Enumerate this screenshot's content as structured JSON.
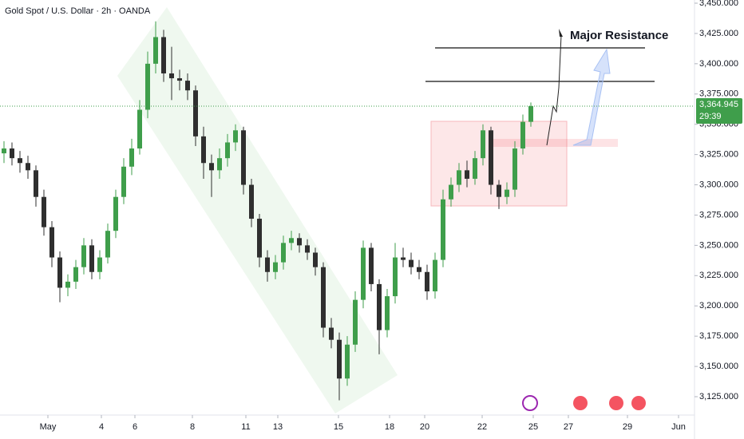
{
  "chart_data": {
    "type": "candlestick",
    "title": "Gold Spot / U.S. Dollar · 2h · OANDA",
    "annotation": "Major Resistance",
    "up_color": "#3f9e4b",
    "down_color": "#2f2f2f",
    "xlim": [
      -0.5,
      86.5
    ],
    "ylim": [
      3125,
      3450
    ],
    "xticks": [
      {
        "value": 5.5,
        "label": "May"
      },
      {
        "value": 12.2,
        "label": "4"
      },
      {
        "value": 16.4,
        "label": "6"
      },
      {
        "value": 23.6,
        "label": "8"
      },
      {
        "value": 30.3,
        "label": "11"
      },
      {
        "value": 34.3,
        "label": "13"
      },
      {
        "value": 41.9,
        "label": "15"
      },
      {
        "value": 48.3,
        "label": "18"
      },
      {
        "value": 52.7,
        "label": "20"
      },
      {
        "value": 59.9,
        "label": "22"
      },
      {
        "value": 66.3,
        "label": "25"
      },
      {
        "value": 70.7,
        "label": "27"
      },
      {
        "value": 78.1,
        "label": "29"
      },
      {
        "value": 84.5,
        "label": "Jun"
      }
    ],
    "yticks": [
      {
        "value": 3125,
        "label": "3,125.000"
      },
      {
        "value": 3150,
        "label": "3,150.000"
      },
      {
        "value": 3175,
        "label": "3,175.000"
      },
      {
        "value": 3200,
        "label": "3,200.000"
      },
      {
        "value": 3225,
        "label": "3,225.000"
      },
      {
        "value": 3250,
        "label": "3,250.000"
      },
      {
        "value": 3275,
        "label": "3,275.000"
      },
      {
        "value": 3300,
        "label": "3,300.000"
      },
      {
        "value": 3325,
        "label": "3,325.000"
      },
      {
        "value": 3350,
        "label": "3,350.000"
      },
      {
        "value": 3375,
        "label": "3,375.000"
      },
      {
        "value": 3400,
        "label": "3,400.000"
      },
      {
        "value": 3425,
        "label": "3,425.000"
      },
      {
        "value": 3450,
        "label": "3,450.000"
      }
    ],
    "last_price": {
      "value": 3364.945,
      "label": "3,364.945"
    },
    "countdown": "29:39",
    "x": [
      0,
      1,
      2,
      3,
      4,
      5,
      6,
      7,
      8,
      9,
      10,
      11,
      12,
      13,
      14,
      15,
      16,
      17,
      18,
      19,
      20,
      21,
      22,
      23,
      24,
      25,
      26,
      27,
      28,
      29,
      30,
      31,
      32,
      33,
      34,
      35,
      36,
      37,
      38,
      39,
      40,
      41,
      42,
      43,
      44,
      45,
      46,
      47,
      48,
      49,
      50,
      51,
      52,
      53,
      54,
      55,
      56,
      57,
      58,
      59,
      60,
      61,
      62,
      63,
      64,
      65,
      66
    ],
    "open": [
      3326,
      3330,
      3322,
      3318,
      3312,
      3290,
      3265,
      3240,
      3215,
      3220,
      3232,
      3250,
      3228,
      3240,
      3262,
      3290,
      3315,
      3330,
      3362,
      3400,
      3422,
      3392,
      3388,
      3386,
      3378,
      3340,
      3318,
      3312,
      3322,
      3335,
      3345,
      3300,
      3272,
      3240,
      3228,
      3236,
      3252,
      3256,
      3250,
      3244,
      3232,
      3182,
      3172,
      3140,
      3168,
      3205,
      3248,
      3218,
      3180,
      3208,
      3240,
      3238,
      3232,
      3228,
      3212,
      3238,
      3288,
      3300,
      3312,
      3305,
      3322,
      3345,
      3300,
      3290,
      3296,
      3330,
      3352
    ],
    "high": [
      3336,
      3335,
      3328,
      3324,
      3316,
      3296,
      3270,
      3245,
      3226,
      3238,
      3256,
      3255,
      3246,
      3268,
      3296,
      3322,
      3338,
      3370,
      3410,
      3435,
      3428,
      3414,
      3395,
      3392,
      3382,
      3348,
      3325,
      3330,
      3342,
      3350,
      3348,
      3305,
      3276,
      3246,
      3242,
      3258,
      3262,
      3260,
      3255,
      3248,
      3236,
      3190,
      3178,
      3175,
      3212,
      3254,
      3252,
      3222,
      3214,
      3252,
      3248,
      3244,
      3238,
      3234,
      3244,
      3296,
      3306,
      3318,
      3320,
      3328,
      3350,
      3348,
      3304,
      3302,
      3336,
      3358,
      3368
    ],
    "low": [
      3318,
      3316,
      3310,
      3305,
      3282,
      3258,
      3232,
      3203,
      3208,
      3214,
      3226,
      3222,
      3222,
      3235,
      3256,
      3284,
      3308,
      3325,
      3355,
      3392,
      3385,
      3370,
      3378,
      3370,
      3332,
      3305,
      3290,
      3305,
      3315,
      3328,
      3292,
      3265,
      3232,
      3220,
      3222,
      3230,
      3246,
      3244,
      3238,
      3225,
      3174,
      3165,
      3122,
      3134,
      3162,
      3198,
      3212,
      3160,
      3174,
      3202,
      3232,
      3226,
      3222,
      3205,
      3206,
      3232,
      3282,
      3294,
      3298,
      3300,
      3316,
      3292,
      3280,
      3284,
      3290,
      3325,
      3348
    ],
    "close": [
      3330,
      3322,
      3318,
      3312,
      3290,
      3265,
      3240,
      3215,
      3220,
      3232,
      3250,
      3228,
      3240,
      3262,
      3290,
      3315,
      3330,
      3362,
      3400,
      3422,
      3392,
      3388,
      3386,
      3378,
      3340,
      3318,
      3312,
      3322,
      3335,
      3345,
      3300,
      3272,
      3240,
      3228,
      3236,
      3252,
      3256,
      3250,
      3244,
      3232,
      3182,
      3172,
      3140,
      3168,
      3205,
      3248,
      3218,
      3180,
      3208,
      3240,
      3238,
      3232,
      3228,
      3212,
      3238,
      3288,
      3300,
      3312,
      3305,
      3322,
      3345,
      3300,
      3290,
      3296,
      3330,
      3352,
      3365
    ]
  }
}
